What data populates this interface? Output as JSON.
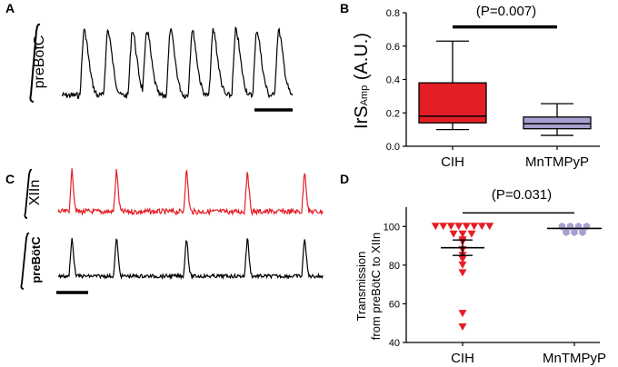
{
  "panels": {
    "a": {
      "letter": "A",
      "trace_label": "preBötC"
    },
    "b": {
      "letter": "B"
    },
    "c": {
      "letter": "C",
      "trace_label_top": "XIIn",
      "trace_label_bottom": "preBötC"
    },
    "d": {
      "letter": "D"
    }
  },
  "colors": {
    "red": "#e41e26",
    "purple": "#a79fd0",
    "black": "#000000"
  },
  "chart_data": [
    {
      "type": "box",
      "panel": "B",
      "title": "",
      "ylabel_main": "IrS",
      "ylabel_sub": "Amp",
      "ylabel_tail": " (A.U.)",
      "ylim": [
        0.0,
        0.8
      ],
      "yticks": [
        "0.0",
        "0.2",
        "0.4",
        "0.6",
        "0.8"
      ],
      "ytick_values": [
        0.0,
        0.2,
        0.4,
        0.6,
        0.8
      ],
      "categories": [
        "CIH",
        "MnTMPyP"
      ],
      "boxes": [
        {
          "name": "CIH",
          "min": 0.1,
          "q1": 0.14,
          "median": 0.18,
          "q3": 0.38,
          "max": 0.63
        },
        {
          "name": "MnTMPyP",
          "min": 0.065,
          "q1": 0.105,
          "median": 0.135,
          "q3": 0.175,
          "max": 0.255
        }
      ],
      "significance": {
        "label": "(P=0.007)",
        "level": 0.715
      }
    },
    {
      "type": "scatter",
      "panel": "D",
      "title": "",
      "ylabel_line1": "Transmission",
      "ylabel_line2": "from preBötC to XIIn",
      "ylim": [
        40,
        110
      ],
      "yticks": [
        "40",
        "60",
        "80",
        "100"
      ],
      "ytick_values": [
        40,
        60,
        80,
        100
      ],
      "categories": [
        "CIH",
        "MnTMPyP"
      ],
      "series": [
        {
          "name": "CIH",
          "marker": "triangle-down",
          "values": [
            100,
            100,
            100,
            100,
            100,
            100,
            100,
            100,
            96,
            96,
            96,
            93,
            92,
            88,
            85,
            83,
            80,
            76,
            55,
            48
          ],
          "mean": 89,
          "sem": 4
        },
        {
          "name": "MnTMPyP",
          "marker": "hexagon",
          "values": [
            100,
            100,
            100,
            100,
            97,
            97,
            97
          ],
          "mean": 99
        }
      ],
      "significance": {
        "label": "(P=0.031)",
        "level": 107
      }
    }
  ]
}
